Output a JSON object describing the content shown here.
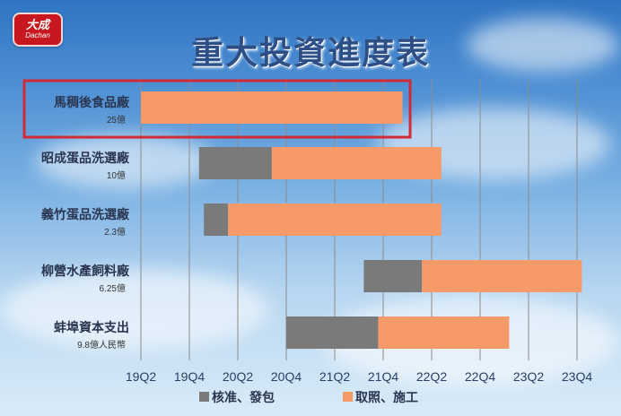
{
  "logo": {
    "main": "大成",
    "sub": "Dachan"
  },
  "title": "重大投資進度表",
  "colors": {
    "prep": "#7a7a7a",
    "build": "#f79a6a",
    "highlight": "#d12a37",
    "grid": "#8c8c8c"
  },
  "chart_data": {
    "type": "bar",
    "orientation": "horizontal",
    "stacked": true,
    "title": "重大投資進度表",
    "x_ticks": [
      "19Q2",
      "19Q4",
      "20Q2",
      "20Q4",
      "21Q2",
      "21Q4",
      "22Q2",
      "22Q4",
      "23Q2",
      "23Q4"
    ],
    "grid": true,
    "legend_position": "bottom",
    "series": [
      {
        "name": "核准、發包",
        "color": "#7a7a7a"
      },
      {
        "name": "取照、施工",
        "color": "#f79a6a"
      }
    ],
    "rows": [
      {
        "name": "馬稠後食品廠",
        "amount": "25億",
        "segments": [
          {
            "series": "取照、施工",
            "start": 0.0,
            "end": 5.4
          }
        ],
        "highlighted": true
      },
      {
        "name": "昭成蛋品洗選廠",
        "amount": "10億",
        "segments": [
          {
            "series": "核准、發包",
            "start": 1.2,
            "end": 2.7
          },
          {
            "series": "取照、施工",
            "start": 2.7,
            "end": 6.2
          }
        ]
      },
      {
        "name": "義竹蛋品洗選廠",
        "amount": "2.3億",
        "segments": [
          {
            "series": "核准、發包",
            "start": 1.3,
            "end": 1.8
          },
          {
            "series": "取照、施工",
            "start": 1.8,
            "end": 6.2
          }
        ]
      },
      {
        "name": "柳營水產飼料廠",
        "amount": "6.25億",
        "segments": [
          {
            "series": "核准、發包",
            "start": 4.6,
            "end": 5.8
          },
          {
            "series": "取照、施工",
            "start": 5.8,
            "end": 9.1
          }
        ]
      },
      {
        "name": "蚌埠資本支出",
        "amount": "9.8億人民幣",
        "segments": [
          {
            "series": "核准、發包",
            "start": 3.0,
            "end": 4.9
          },
          {
            "series": "取照、施工",
            "start": 4.9,
            "end": 7.6
          }
        ]
      }
    ]
  }
}
